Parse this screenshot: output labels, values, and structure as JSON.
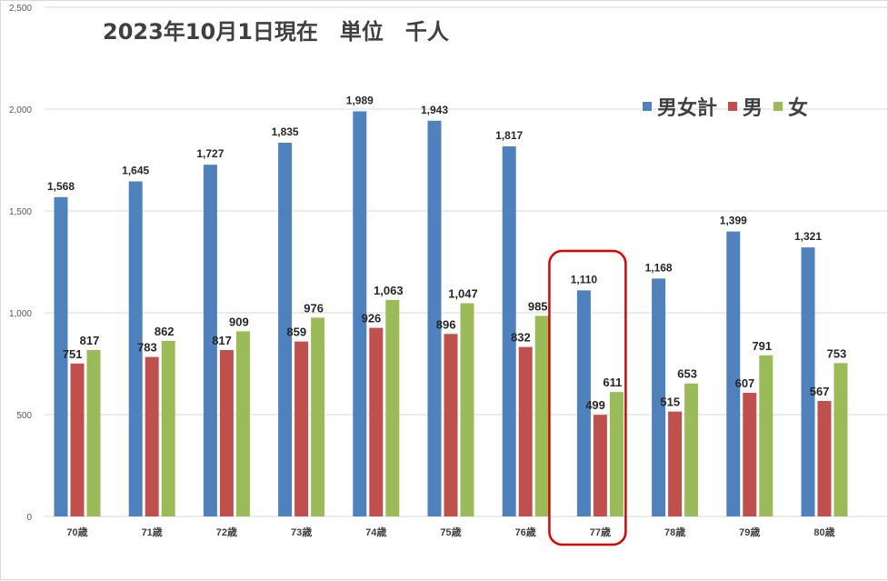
{
  "chart_data": {
    "type": "bar",
    "title": "2023年10月1日現在　単位　千人",
    "categories": [
      "70歳",
      "71歳",
      "72歳",
      "73歳",
      "74歳",
      "75歳",
      "76歳",
      "77歳",
      "78歳",
      "79歳",
      "80歳"
    ],
    "series": [
      {
        "name": "男女計",
        "color": "#4f81bd",
        "values": [
          1568,
          1645,
          1727,
          1835,
          1989,
          1943,
          1817,
          1110,
          1168,
          1399,
          1321
        ]
      },
      {
        "name": "男",
        "color": "#c0504d",
        "values": [
          751,
          783,
          817,
          859,
          926,
          896,
          832,
          499,
          515,
          607,
          567
        ]
      },
      {
        "name": "女",
        "color": "#9bbb59",
        "values": [
          817,
          862,
          909,
          976,
          1063,
          1047,
          985,
          611,
          653,
          791,
          753
        ]
      }
    ],
    "data_labels": {
      "男女計": [
        "1,568",
        "1,645",
        "1,727",
        "1,835",
        "1,989",
        "1,943",
        "1,817",
        "1,110",
        "1,168",
        "1,399",
        "1,321"
      ],
      "男": [
        "751",
        "783",
        "817",
        "859",
        "926",
        "896",
        "832",
        "499",
        "515",
        "607",
        "567"
      ],
      "女": [
        "817",
        "862",
        "909",
        "976",
        "1,063",
        "1,047",
        "985",
        "611",
        "653",
        "791",
        "753"
      ]
    },
    "ylim": [
      0,
      2500
    ],
    "yticks": [
      0,
      500,
      1000,
      1500,
      2000,
      2500
    ],
    "ytick_labels": [
      "0",
      "500",
      "1,000",
      "1,500",
      "2,000",
      "2,500"
    ],
    "grid": true,
    "legend_position": "top-right",
    "highlight_category": "77歳",
    "highlight_color": "#e00000"
  }
}
